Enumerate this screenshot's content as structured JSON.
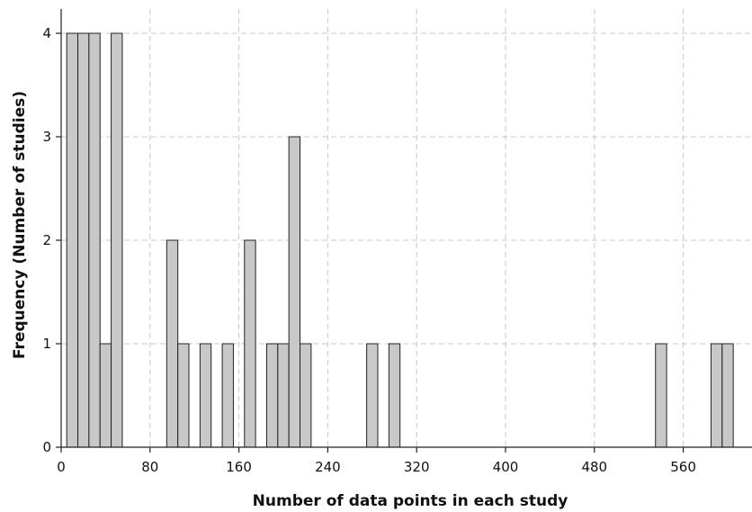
{
  "chart_data": {
    "type": "bar",
    "title": "",
    "xlabel": "Number of data points in each study",
    "ylabel": "Frequency (Number of studies)",
    "xlim": [
      0,
      600
    ],
    "ylim": [
      0,
      4
    ],
    "x_ticks": [
      0,
      80,
      160,
      240,
      320,
      400,
      480,
      560
    ],
    "y_ticks": [
      0,
      1,
      2,
      3,
      4
    ],
    "bin_width": 10,
    "grid": true,
    "bar_color": "#c8c8c8",
    "bar_edge_color": "#222222",
    "bins": [
      {
        "start": 5,
        "count": 4
      },
      {
        "start": 15,
        "count": 4
      },
      {
        "start": 25,
        "count": 4
      },
      {
        "start": 35,
        "count": 1
      },
      {
        "start": 45,
        "count": 4
      },
      {
        "start": 95,
        "count": 2
      },
      {
        "start": 105,
        "count": 1
      },
      {
        "start": 125,
        "count": 1
      },
      {
        "start": 145,
        "count": 1
      },
      {
        "start": 165,
        "count": 2
      },
      {
        "start": 185,
        "count": 1
      },
      {
        "start": 195,
        "count": 1
      },
      {
        "start": 205,
        "count": 3
      },
      {
        "start": 215,
        "count": 1
      },
      {
        "start": 275,
        "count": 1
      },
      {
        "start": 295,
        "count": 1
      },
      {
        "start": 535,
        "count": 1
      },
      {
        "start": 585,
        "count": 1
      },
      {
        "start": 595,
        "count": 1
      }
    ]
  }
}
